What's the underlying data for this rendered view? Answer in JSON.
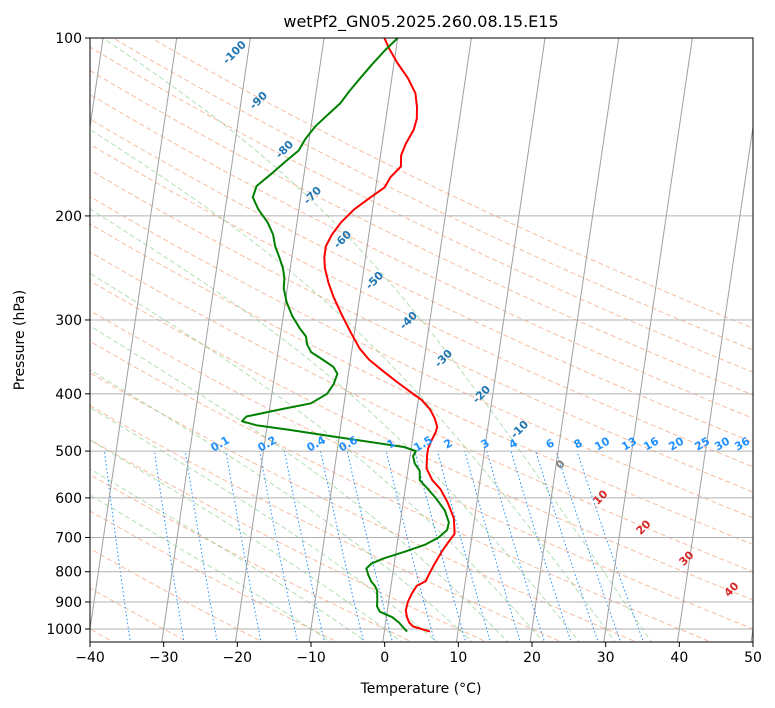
{
  "chart_data": {
    "type": "line",
    "subtype": "skew-t log-p",
    "title": "wetPf2_GN05.2025.260.08.15.E15",
    "xlabel": "Temperature (°C)",
    "ylabel": "Pressure (hPa)",
    "xlim": [
      -40,
      50
    ],
    "ylim": [
      1050,
      100
    ],
    "y_scale": "log",
    "grid": true,
    "x_ticks": [
      -40,
      -30,
      -20,
      -10,
      0,
      10,
      20,
      30,
      40,
      50
    ],
    "y_ticks": [
      100,
      200,
      300,
      400,
      500,
      600,
      700,
      800,
      900,
      1000
    ],
    "series": [
      {
        "color": "#ff0000",
        "points": [
          [
            6.2,
            1010
          ],
          [
            5.0,
            1000
          ],
          [
            3.8,
            990
          ],
          [
            3.2,
            975
          ],
          [
            2.8,
            955
          ],
          [
            2.5,
            930
          ],
          [
            2.6,
            900
          ],
          [
            3.0,
            870
          ],
          [
            3.5,
            845
          ],
          [
            4.6,
            830
          ],
          [
            4.9,
            810
          ],
          [
            5.4,
            780
          ],
          [
            6.2,
            740
          ],
          [
            7.0,
            710
          ],
          [
            7.6,
            690
          ],
          [
            7.2,
            650
          ],
          [
            6.0,
            610
          ],
          [
            4.8,
            580
          ],
          [
            3.5,
            560
          ],
          [
            2.5,
            535
          ],
          [
            2.3,
            510
          ],
          [
            2.3,
            495
          ],
          [
            2.6,
            480
          ],
          [
            3.0,
            465
          ],
          [
            3.1,
            455
          ],
          [
            2.6,
            440
          ],
          [
            1.8,
            425
          ],
          [
            0.5,
            410
          ],
          [
            -1.5,
            395
          ],
          [
            -3.5,
            380
          ],
          [
            -5.5,
            365
          ],
          [
            -7.5,
            350
          ],
          [
            -9.0,
            335
          ],
          [
            -10.5,
            315
          ],
          [
            -12.0,
            295
          ],
          [
            -13.5,
            275
          ],
          [
            -14.5,
            260
          ],
          [
            -15.3,
            245
          ],
          [
            -15.6,
            235
          ],
          [
            -15.6,
            225
          ],
          [
            -15.0,
            215
          ],
          [
            -14.0,
            205
          ],
          [
            -12.5,
            195
          ],
          [
            -10.5,
            186
          ],
          [
            -8.8,
            179
          ],
          [
            -8.2,
            172
          ],
          [
            -7.0,
            165
          ],
          [
            -7.2,
            158
          ],
          [
            -6.8,
            151
          ],
          [
            -6.0,
            143
          ],
          [
            -5.8,
            137
          ],
          [
            -6.0,
            131
          ],
          [
            -6.5,
            124
          ],
          [
            -7.8,
            117
          ],
          [
            -9.6,
            110
          ],
          [
            -11.0,
            104
          ],
          [
            -11.8,
            100
          ]
        ]
      },
      {
        "color": "#008000",
        "points": [
          [
            3.1,
            1010
          ],
          [
            2.7,
            1000
          ],
          [
            1.8,
            975
          ],
          [
            0.8,
            955
          ],
          [
            -1.0,
            935
          ],
          [
            -1.5,
            915
          ],
          [
            -1.6,
            890
          ],
          [
            -1.8,
            860
          ],
          [
            -2.2,
            845
          ],
          [
            -2.8,
            830
          ],
          [
            -3.3,
            810
          ],
          [
            -3.7,
            790
          ],
          [
            -3.1,
            775
          ],
          [
            -1.6,
            760
          ],
          [
            1.2,
            740
          ],
          [
            3.8,
            720
          ],
          [
            5.5,
            700
          ],
          [
            6.5,
            680
          ],
          [
            6.6,
            660
          ],
          [
            5.8,
            630
          ],
          [
            4.3,
            600
          ],
          [
            2.8,
            575
          ],
          [
            1.8,
            560
          ],
          [
            1.6,
            540
          ],
          [
            0.8,
            525
          ],
          [
            0.4,
            510
          ],
          [
            0.7,
            500
          ],
          [
            -1.0,
            492
          ],
          [
            -12.0,
            470
          ],
          [
            -17.0,
            460
          ],
          [
            -21.5,
            452
          ],
          [
            -23.5,
            445
          ],
          [
            -23.0,
            437
          ],
          [
            -18.5,
            425
          ],
          [
            -14.5,
            415
          ],
          [
            -12.5,
            400
          ],
          [
            -11.8,
            385
          ],
          [
            -11.5,
            370
          ],
          [
            -12.2,
            360
          ],
          [
            -13.8,
            350
          ],
          [
            -15.5,
            340
          ],
          [
            -16.2,
            330
          ],
          [
            -16.5,
            320
          ],
          [
            -17.5,
            310
          ],
          [
            -18.8,
            295
          ],
          [
            -19.8,
            280
          ],
          [
            -20.5,
            265
          ],
          [
            -20.6,
            255
          ],
          [
            -21.0,
            245
          ],
          [
            -21.7,
            235
          ],
          [
            -22.5,
            225
          ],
          [
            -23.0,
            215
          ],
          [
            -24.0,
            205
          ],
          [
            -25.5,
            195
          ],
          [
            -26.5,
            186
          ],
          [
            -26.2,
            178
          ],
          [
            -24.5,
            170
          ],
          [
            -22.8,
            162
          ],
          [
            -21.2,
            155
          ],
          [
            -20.5,
            148
          ],
          [
            -19.4,
            141
          ],
          [
            -18.0,
            135
          ],
          [
            -16.5,
            129
          ],
          [
            -15.5,
            123
          ],
          [
            -14.3,
            117
          ],
          [
            -13.0,
            111
          ],
          [
            -11.5,
            105
          ],
          [
            -10.0,
            100
          ]
        ]
      }
    ],
    "overlays": {
      "isotherm_spacing_c": 10,
      "dry_adiabats_c": [
        -50,
        -40,
        -30,
        -20,
        -10,
        0,
        10,
        20,
        30,
        40,
        50,
        60,
        70,
        80,
        90,
        100,
        110,
        120,
        130,
        140,
        150,
        160,
        170
      ],
      "moist_adiabats_c": [
        -10,
        -5,
        0,
        5,
        10,
        15,
        20,
        25,
        30,
        35
      ],
      "mixing_ratio_lines": [
        0.1,
        0.2,
        0.4,
        0.6,
        1,
        1.5,
        2,
        3,
        4,
        6,
        8,
        10,
        13,
        16,
        20,
        25,
        30,
        36
      ],
      "temperature_labels": [
        -100,
        -90,
        -80,
        -70,
        -60,
        -50,
        -40,
        -30,
        -20,
        -10
      ],
      "wetbulb_labels": [
        0,
        10,
        20,
        30,
        40
      ]
    },
    "label_colors": {
      "mixing_ratio": "#1e90ff",
      "temperature_labels": "#1f77b4",
      "wetbulb_labels": "#d62728",
      "zero_label": "#808080"
    }
  }
}
